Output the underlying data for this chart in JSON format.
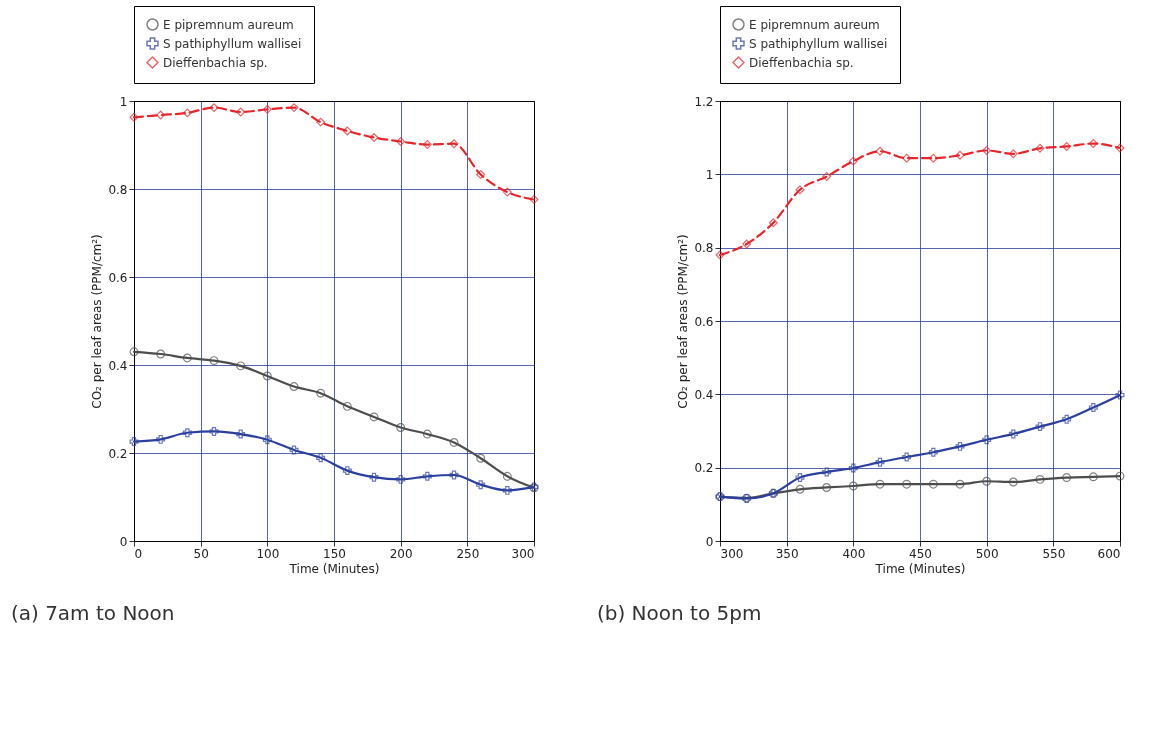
{
  "chart_data": [
    {
      "type": "line",
      "xlabel": "Time (Minutes)",
      "ylabel": "CO₂ per leaf areas (PPM/cm²)",
      "annotations": [
        "(a) 7am to Noon"
      ],
      "x": [
        0,
        20,
        40,
        60,
        80,
        100,
        120,
        140,
        160,
        180,
        200,
        220,
        240,
        260,
        280,
        300
      ],
      "xlim": [
        0,
        300
      ],
      "xticks": [
        0,
        50,
        100,
        150,
        200,
        250,
        300
      ],
      "ylim": [
        0,
        1
      ],
      "yticks": [
        0,
        0.2,
        0.4,
        0.6,
        0.8,
        1
      ],
      "grid": true,
      "legend": "top left",
      "series": [
        {
          "name": "E pipremnum aureum",
          "color": "#4d4d4d",
          "marker": "circle",
          "line_style": "solid",
          "values": [
            0.43,
            0.425,
            0.416,
            0.41,
            0.398,
            0.375,
            0.351,
            0.336,
            0.306,
            0.282,
            0.258,
            0.243,
            0.224,
            0.188,
            0.147,
            0.121
          ]
        },
        {
          "name": "S pathiphyllum wallisei",
          "color": "#2b3fa0",
          "marker": "cross",
          "line_style": "solid",
          "values": [
            0.226,
            0.231,
            0.246,
            0.249,
            0.243,
            0.23,
            0.207,
            0.189,
            0.16,
            0.145,
            0.14,
            0.147,
            0.15,
            0.128,
            0.115,
            0.123
          ]
        },
        {
          "name": "Dieffenbachia sp.",
          "color": "#e8252b",
          "marker": "diamond",
          "line_style": "dashed",
          "values": [
            0.963,
            0.968,
            0.973,
            0.985,
            0.975,
            0.981,
            0.985,
            0.952,
            0.932,
            0.917,
            0.908,
            0.901,
            0.903,
            0.833,
            0.793,
            0.776
          ]
        }
      ]
    },
    {
      "type": "line",
      "xlabel": "Time (Minutes)",
      "ylabel": "CO₂ per leaf areas (PPM/cm²)",
      "annotations": [
        "(b) Noon to 5pm"
      ],
      "x": [
        300,
        320,
        340,
        360,
        380,
        400,
        420,
        440,
        460,
        480,
        500,
        520,
        540,
        560,
        580,
        600
      ],
      "xlim": [
        300,
        600
      ],
      "xticks": [
        300,
        350,
        400,
        450,
        500,
        550,
        600
      ],
      "ylim": [
        0,
        1.2
      ],
      "yticks": [
        0,
        0.2,
        0.4,
        0.6,
        0.8,
        1,
        1.2
      ],
      "grid": true,
      "legend": "top left",
      "series": [
        {
          "name": "E pipremnum aureum",
          "color": "#4d4d4d",
          "marker": "circle",
          "line_style": "solid",
          "values": [
            0.121,
            0.117,
            0.13,
            0.141,
            0.146,
            0.15,
            0.155,
            0.155,
            0.155,
            0.155,
            0.163,
            0.161,
            0.168,
            0.173,
            0.175,
            0.177
          ]
        },
        {
          "name": "S pathiphyllum wallisei",
          "color": "#2b3fa0",
          "marker": "cross",
          "line_style": "solid",
          "values": [
            0.121,
            0.116,
            0.13,
            0.173,
            0.188,
            0.199,
            0.215,
            0.229,
            0.242,
            0.258,
            0.276,
            0.292,
            0.312,
            0.332,
            0.364,
            0.398
          ]
        },
        {
          "name": "Dieffenbachia sp.",
          "color": "#e8252b",
          "marker": "diamond",
          "line_style": "dashed",
          "values": [
            0.78,
            0.81,
            0.868,
            0.958,
            0.994,
            1.036,
            1.063,
            1.044,
            1.044,
            1.052,
            1.065,
            1.056,
            1.071,
            1.076,
            1.084,
            1.072
          ]
        }
      ]
    }
  ]
}
